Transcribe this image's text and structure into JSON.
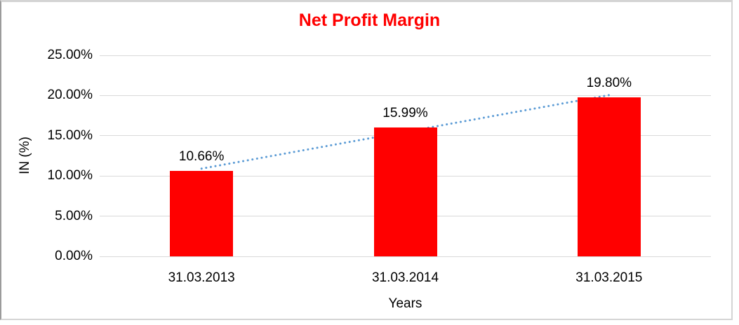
{
  "chart_data": {
    "type": "bar",
    "title": "Net Profit Margin",
    "title_color": "#FF0000",
    "xlabel": "Years",
    "ylabel": "IN (%)",
    "categories": [
      "31.03.2013",
      "31.03.2014",
      "31.03.2015"
    ],
    "values": [
      10.66,
      15.99,
      19.8
    ],
    "value_labels": [
      "10.66%",
      "15.99%",
      "19.80%"
    ],
    "bar_color": "#FF0000",
    "ylim": [
      0,
      25
    ],
    "grid": true,
    "gridline_color": "#D9D9D9",
    "y_ticks": [
      {
        "label": "0.00%",
        "value": 0
      },
      {
        "label": "5.00%",
        "value": 5
      },
      {
        "label": "10.00%",
        "value": 10
      },
      {
        "label": "15.00%",
        "value": 15
      },
      {
        "label": "20.00%",
        "value": 20
      },
      {
        "label": "25.00%",
        "value": 25
      }
    ],
    "legend": "none",
    "trendline": {
      "type": "linear",
      "style": "dotted",
      "color": "#5B9BD5"
    }
  }
}
